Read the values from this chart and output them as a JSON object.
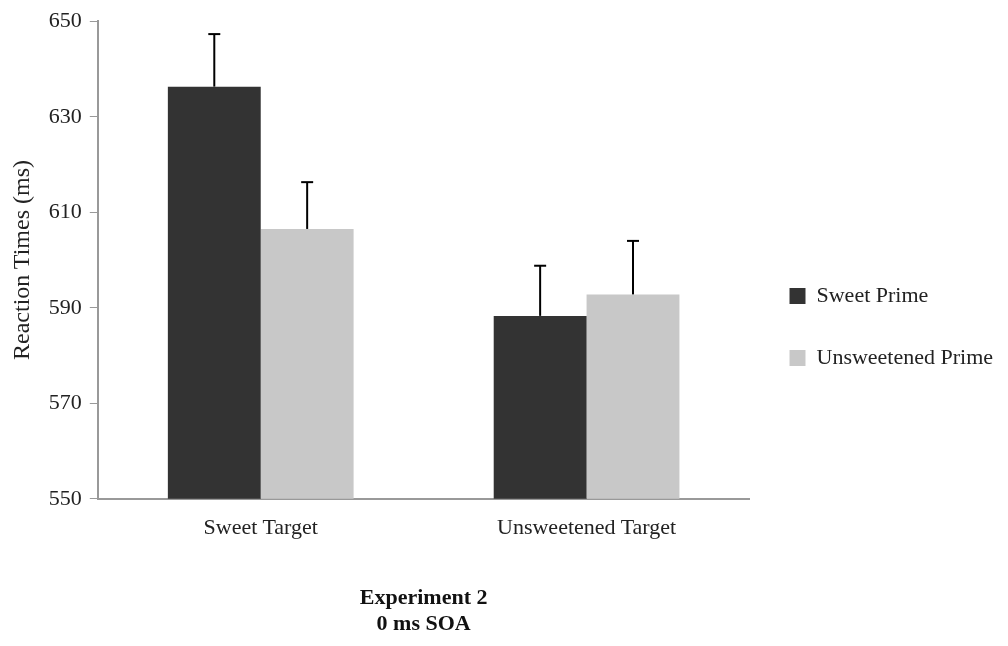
{
  "chart_data": {
    "type": "bar",
    "xlabel": "Experiment 2\n0 ms SOA",
    "ylabel": "Reaction Times (ms)",
    "categories": [
      "Sweet Target",
      "Unsweetened Target"
    ],
    "series": [
      {
        "name": "Sweet Prime",
        "color": "#333333",
        "values": [
          636.3,
          588.3
        ],
        "errors": [
          [
            636.3,
            647.3
          ],
          [
            588.3,
            598.8
          ]
        ]
      },
      {
        "name": "Unsweetened Prime",
        "color": "#c8c8c8",
        "values": [
          606.5,
          592.8
        ],
        "errors": [
          [
            606.5,
            616.3
          ],
          [
            592.8,
            604.0
          ]
        ]
      }
    ],
    "ylim": [
      550,
      650
    ],
    "yticks": [
      550,
      570,
      590,
      610,
      630,
      650
    ],
    "grid": false,
    "legend": "right"
  }
}
